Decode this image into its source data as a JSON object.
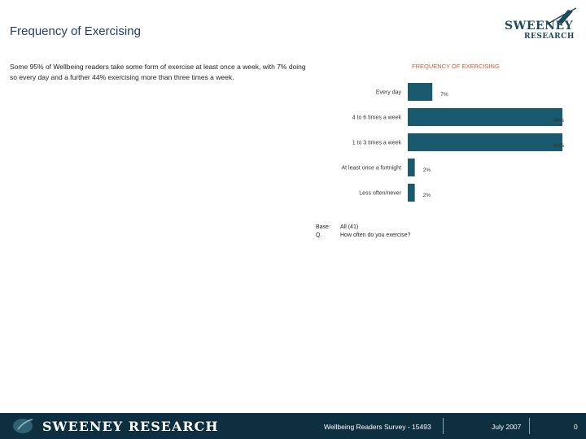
{
  "title": "Frequency of Exercising",
  "brand": {
    "line1": "SWEENEY",
    "line2": "RESEARCH",
    "footer_name": "SWEENEY RESEARCH"
  },
  "summary": "Some 95% of Wellbeing readers take some form of exercise at least once a week, with 7% doing so every day and a further 44% exercising more than three times a week.",
  "chart_data": {
    "type": "bar",
    "orientation": "horizontal",
    "title": "FREQUENCY OF EXERCISING",
    "categories": [
      "Every day",
      "4 to 6 times a week",
      "1 to 3 times a week",
      "At least once a fortnight",
      "Less often/never"
    ],
    "values": [
      7,
      44,
      44,
      2,
      2
    ],
    "value_labels": [
      "7%",
      "44%",
      "44%",
      "2%",
      "2%"
    ],
    "xlim": [
      0,
      44
    ],
    "bar_color": "#195a6e",
    "title_color": "#e0502a",
    "grid": false
  },
  "notes": {
    "base_key": "Base:",
    "base_value": "All (41)",
    "q_key": "Q.",
    "q_value": "How often do you exercise?"
  },
  "footer": {
    "survey": "Wellbeing Readers Survey - 15493",
    "date": "July 2007",
    "page": "0"
  }
}
